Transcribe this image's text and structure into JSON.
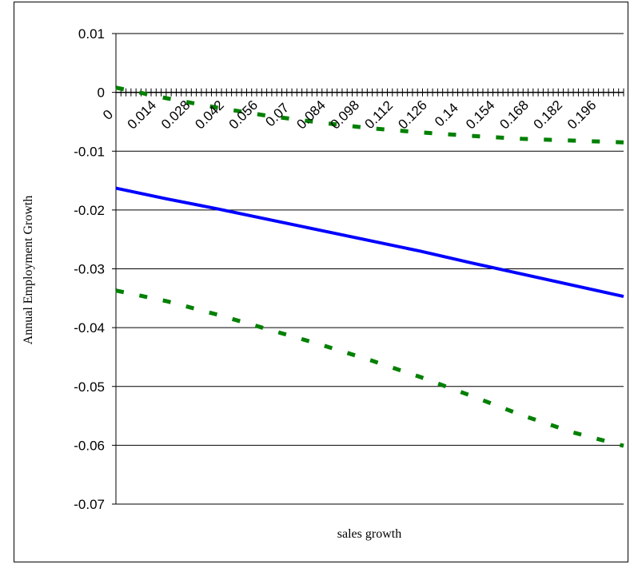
{
  "chart_data": {
    "type": "line",
    "title": "",
    "xlabel": "sales growth",
    "ylabel": "Annual Employment Growth",
    "ylim": [
      -0.07,
      0.01
    ],
    "y_ticks": [
      "0.01",
      "0",
      "-0.01",
      "-0.02",
      "-0.03",
      "-0.04",
      "-0.05",
      "-0.06",
      "-0.07"
    ],
    "x_tick_labels": [
      "0",
      "0.014",
      "0.028",
      "0.042",
      "0.056",
      "0.07",
      "0.084",
      "0.098",
      "0.112",
      "0.126",
      "0.14",
      "0.154",
      "0.168",
      "0.182",
      "0.196"
    ],
    "x_range": [
      0,
      0.21
    ],
    "grid": true,
    "legend": "none",
    "series": [
      {
        "style": "solid",
        "color": "#0000ff",
        "x": [
          0,
          0.021,
          0.042,
          0.063,
          0.084,
          0.105,
          0.126,
          0.147,
          0.168,
          0.189,
          0.21
        ],
        "values": [
          -0.0163,
          -0.0181,
          -0.0198,
          -0.0216,
          -0.0234,
          -0.0252,
          -0.027,
          -0.029,
          -0.0309,
          -0.0328,
          -0.0347
        ]
      },
      {
        "style": "dashed",
        "color": "#008000",
        "x": [
          0,
          0.021,
          0.042,
          0.063,
          0.084,
          0.105,
          0.126,
          0.147,
          0.168,
          0.189,
          0.21
        ],
        "values": [
          0.0008,
          -0.001,
          -0.0026,
          -0.004,
          -0.0051,
          -0.0061,
          -0.0068,
          -0.0074,
          -0.0079,
          -0.0082,
          -0.0085
        ]
      },
      {
        "style": "dashed",
        "color": "#008000",
        "x": [
          0,
          0.021,
          0.042,
          0.063,
          0.084,
          0.105,
          0.126,
          0.147,
          0.168,
          0.189,
          0.21
        ],
        "values": [
          -0.0337,
          -0.0355,
          -0.0378,
          -0.0403,
          -0.0428,
          -0.0455,
          -0.0484,
          -0.0516,
          -0.0549,
          -0.0578,
          -0.0601
        ]
      }
    ]
  }
}
